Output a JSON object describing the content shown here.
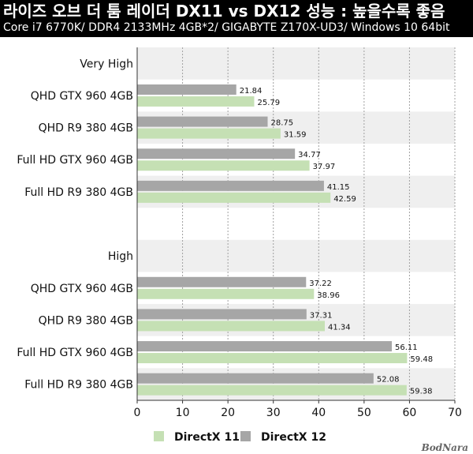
{
  "title": "라이즈 오브 더 툼 레이더 DX11 vs DX12 성능 : 높을수록 좋음",
  "subtitle": "Core i7 6770K/ DDR4 2133MHz 4GB*2/ GIGABYTE Z170X-UD3/ Windows 10 64bit",
  "watermark": "BodNara",
  "chart_data": {
    "type": "bar",
    "orientation": "horizontal",
    "title": "라이즈 오브 더 툼 레이더 DX11 vs DX12 성능 : 높을수록 좋음",
    "subtitle": "Core i7 6770K/ DDR4 2133MHz 4GB*2/ GIGABYTE Z170X-UD3/ Windows 10 64bit",
    "categories": [
      "Very High",
      "QHD GTX 960 4GB",
      "QHD R9 380 4GB",
      "Full HD GTX 960 4GB",
      "Full HD R9 380 4GB",
      "",
      "High",
      "QHD GTX 960 4GB",
      "QHD R9 380 4GB",
      "Full HD GTX 960 4GB",
      "Full HD R9 380 4GB"
    ],
    "series": [
      {
        "name": "DirectX 11",
        "color": "#c5e0b4",
        "values": [
          null,
          25.79,
          31.59,
          37.97,
          42.59,
          null,
          null,
          38.96,
          41.34,
          59.48,
          59.38
        ]
      },
      {
        "name": "DirectX 12",
        "color": "#a6a6a6",
        "values": [
          null,
          21.84,
          28.75,
          34.77,
          41.15,
          null,
          null,
          37.22,
          37.31,
          56.11,
          52.08
        ]
      }
    ],
    "xlim": [
      0,
      70
    ],
    "xticks": [
      0,
      10,
      20,
      30,
      40,
      50,
      60,
      70
    ],
    "xlabel": "",
    "ylabel": "",
    "grid": "vertical dashed",
    "legend_position": "bottom"
  }
}
